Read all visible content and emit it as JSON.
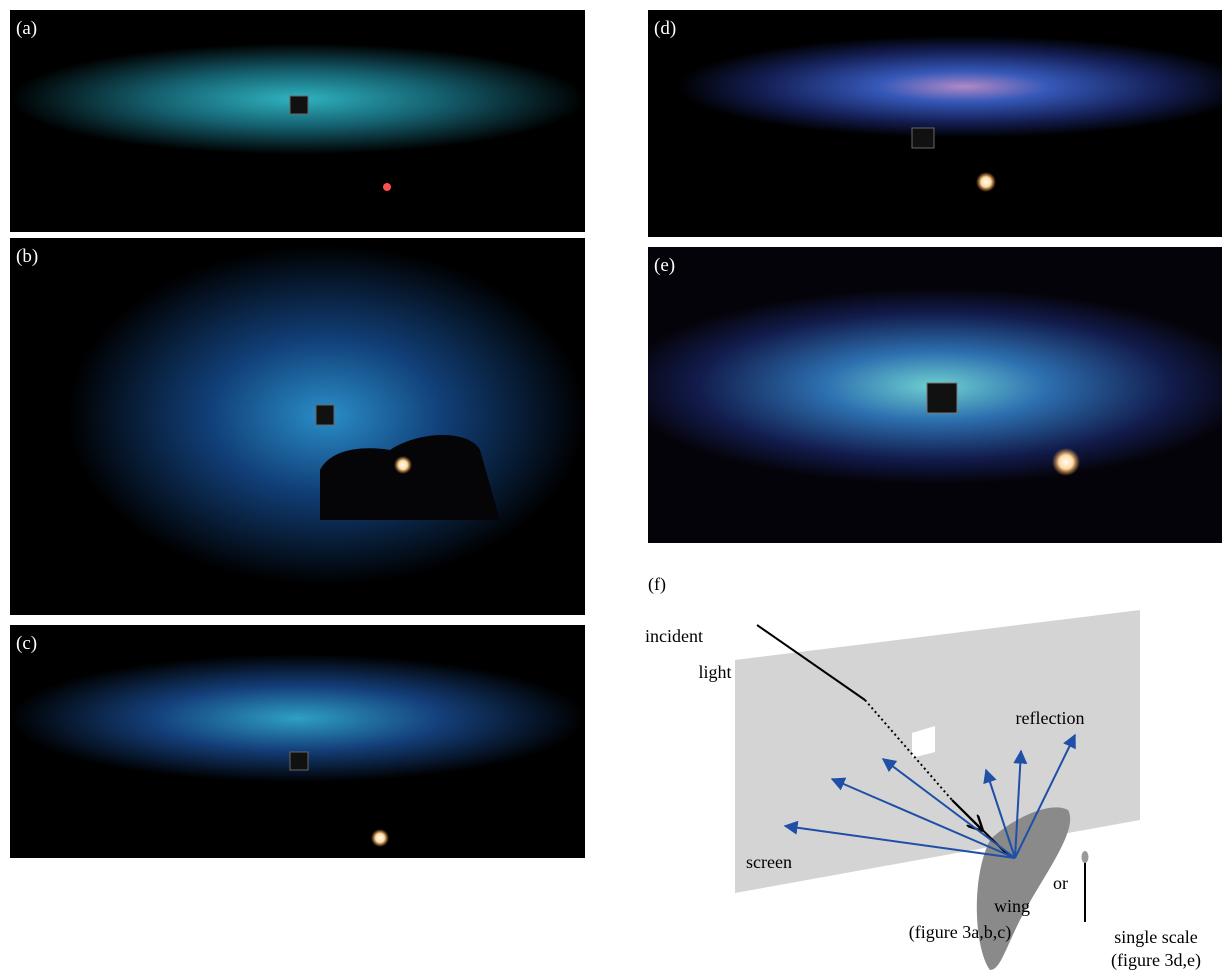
{
  "panels": [
    {
      "label": "(a)"
    },
    {
      "label": "(b)"
    },
    {
      "label": "(c)"
    },
    {
      "label": "(d)"
    },
    {
      "label": "(e)"
    }
  ],
  "diagram": {
    "label": "(f)",
    "incident_light": [
      "incident",
      "light"
    ],
    "reflection": "reflection",
    "screen": "screen",
    "wing": [
      "wing",
      "(figure 3a,b,c)"
    ],
    "or": "or",
    "single_scale": [
      "single scale",
      "(figure 3d,e)"
    ]
  }
}
